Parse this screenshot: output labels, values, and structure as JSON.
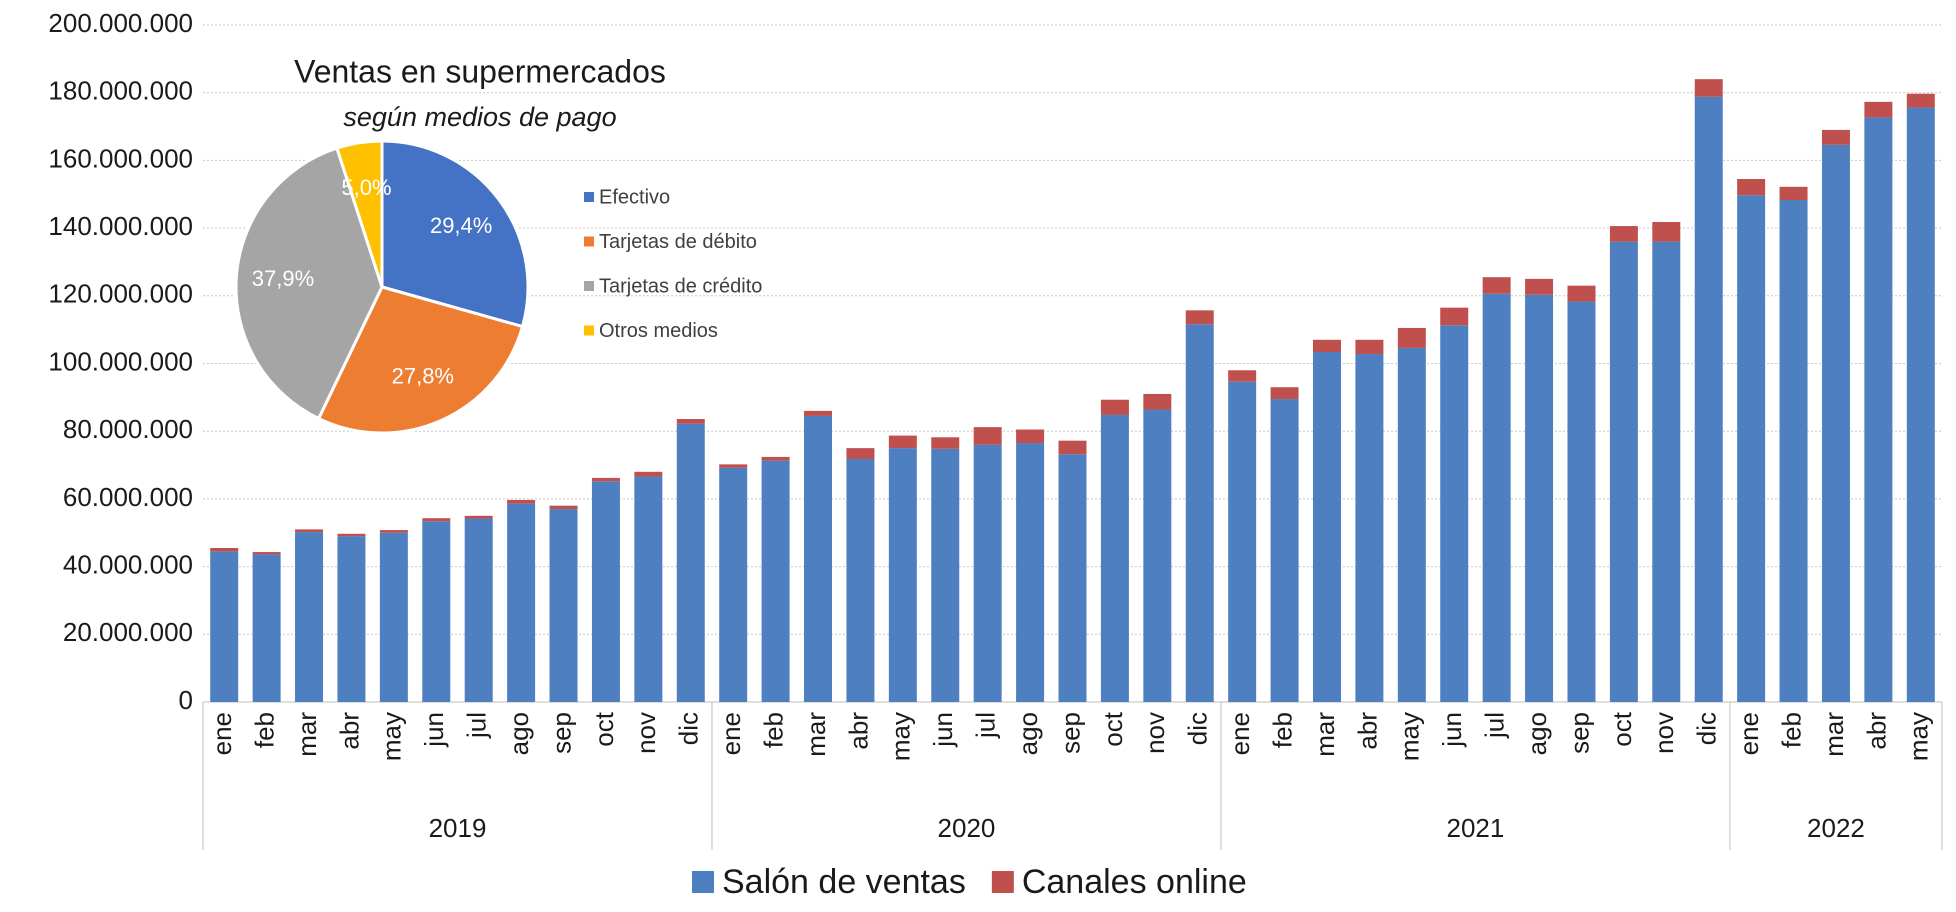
{
  "chart_data": [
    {
      "type": "stacked_bar",
      "groups": [
        {
          "label": "2019",
          "categories": [
            "ene",
            "feb",
            "mar",
            "abr",
            "may",
            "jun",
            "jul",
            "ago",
            "sep",
            "oct",
            "nov",
            "dic"
          ]
        },
        {
          "label": "2020",
          "categories": [
            "ene",
            "feb",
            "mar",
            "abr",
            "may",
            "jun",
            "jul",
            "ago",
            "sep",
            "oct",
            "nov",
            "dic"
          ]
        },
        {
          "label": "2021",
          "categories": [
            "ene",
            "feb",
            "mar",
            "abr",
            "may",
            "jun",
            "jul",
            "ago",
            "sep",
            "oct",
            "nov",
            "dic"
          ]
        },
        {
          "label": "2022",
          "categories": [
            "ene",
            "feb",
            "mar",
            "abr",
            "may"
          ]
        }
      ],
      "series": [
        {
          "name": "Salón de ventas",
          "color": "#4e7fc0",
          "values": [
            44500000,
            43600000,
            50200000,
            49000000,
            50000000,
            53400000,
            54200000,
            58600000,
            57000000,
            65200000,
            66600000,
            82200000,
            69200000,
            71300000,
            84500000,
            71800000,
            75000000,
            74800000,
            76000000,
            76500000,
            73200000,
            84800000,
            86400000,
            111600000,
            94600000,
            89500000,
            103400000,
            102800000,
            104600000,
            111300000,
            120600000,
            120300000,
            118300000,
            136000000,
            136000000,
            178800000,
            149700000,
            148300000,
            164600000,
            172700000,
            175600000
          ]
        },
        {
          "name": "Canales online",
          "color": "#c0504d",
          "values": [
            1000000,
            700000,
            800000,
            700000,
            800000,
            900000,
            800000,
            1100000,
            1000000,
            1000000,
            1400000,
            1400000,
            1000000,
            1100000,
            1500000,
            3200000,
            3700000,
            3400000,
            5200000,
            4000000,
            4000000,
            4500000,
            4600000,
            4100000,
            3400000,
            3500000,
            3600000,
            4200000,
            5900000,
            5200000,
            4900000,
            4700000,
            4700000,
            4600000,
            5800000,
            5200000,
            4800000,
            3900000,
            4400000,
            4600000,
            4100000
          ]
        }
      ],
      "ylim": [
        0,
        200000000
      ],
      "yticks": [
        0,
        {
          "value": 20000000,
          "label": "20.000.000"
        },
        {
          "value": 40000000,
          "label": "40.000.000"
        },
        {
          "value": 60000000,
          "label": "60.000.000"
        },
        {
          "value": 80000000,
          "label": "80.000.000"
        },
        {
          "value": 100000000,
          "label": "100.000.000"
        },
        {
          "value": 120000000,
          "label": "120.000.000"
        },
        {
          "value": 140000000,
          "label": "140.000.000"
        },
        {
          "value": 160000000,
          "label": "160.000.000"
        },
        {
          "value": 180000000,
          "label": "180.000.000"
        },
        {
          "value": 200000000,
          "label": "200.000.000"
        }
      ],
      "grid": true,
      "legend": "bottom"
    },
    {
      "type": "pie",
      "title": "Ventas en supermercados",
      "subtitle": "según medios de pago",
      "categories": [
        "Efectivo",
        "Tarjetas de débito",
        "Tarjetas de crédito",
        "Otros medios"
      ],
      "values": [
        29.4,
        27.8,
        37.9,
        5.0
      ],
      "value_labels": [
        "29,4%",
        "27,8%",
        "37,9%",
        "5,0%"
      ],
      "colors": [
        "#4472c4",
        "#ed7d31",
        "#a5a5a5",
        "#ffc000"
      ],
      "legend": "right"
    }
  ]
}
